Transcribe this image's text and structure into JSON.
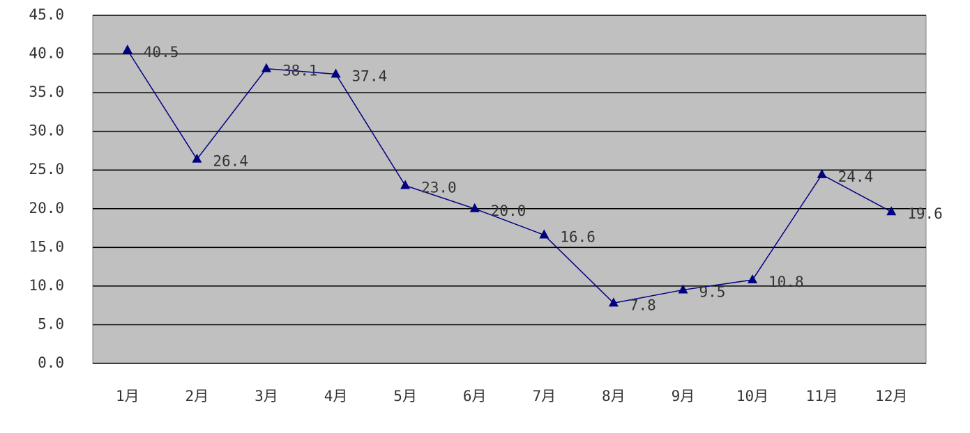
{
  "chart_data": {
    "type": "line",
    "categories": [
      "1月",
      "2月",
      "3月",
      "4月",
      "5月",
      "6月",
      "7月",
      "8月",
      "9月",
      "10月",
      "11月",
      "12月"
    ],
    "series": [
      {
        "color": "#000080",
        "values": [
          40.5,
          26.4,
          38.1,
          37.4,
          23.0,
          20.0,
          16.6,
          7.8,
          9.5,
          10.8,
          24.4,
          19.6
        ],
        "value_labels": [
          "40.5",
          "26.4",
          "38.1",
          "37.4",
          "23.0",
          "20.0",
          "16.6",
          "7.8",
          "9.5",
          "10.8",
          "24.4",
          "19.6"
        ]
      }
    ],
    "ylim": [
      0,
      45
    ],
    "yticks": [
      {
        "value": 0,
        "label": "0.0"
      },
      {
        "value": 5,
        "label": "5.0"
      },
      {
        "value": 10,
        "label": "10.0"
      },
      {
        "value": 15,
        "label": "15.0"
      },
      {
        "value": 20,
        "label": "20.0"
      },
      {
        "value": 25,
        "label": "25.0"
      },
      {
        "value": 30,
        "label": "30.0"
      },
      {
        "value": 35,
        "label": "35.0"
      },
      {
        "value": 40,
        "label": "40.0"
      },
      {
        "value": 45,
        "label": "45.0"
      }
    ],
    "grid": true,
    "plot_color": "#c0c0c0"
  }
}
